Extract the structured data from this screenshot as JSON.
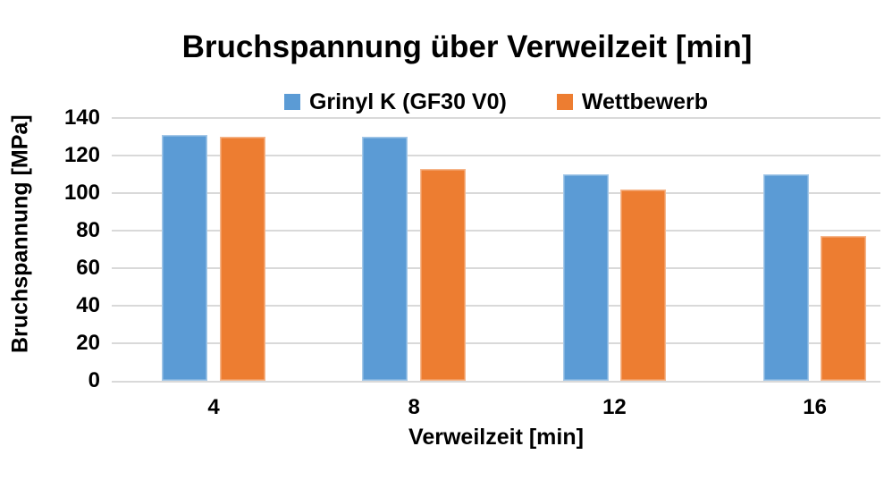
{
  "chart_data": {
    "type": "bar",
    "title": "Bruchspannung über Verweilzeit [min]",
    "xlabel": "Verweilzeit [min]",
    "ylabel": "Bruchspannung [MPa]",
    "categories": [
      "4",
      "8",
      "12",
      "16"
    ],
    "series": [
      {
        "name": "Grinyl K (GF30 V0)",
        "color": "#5B9BD5",
        "values": [
          131,
          130,
          110,
          110
        ]
      },
      {
        "name": "Wettbewerb",
        "color": "#ED7D31",
        "values": [
          130,
          113,
          102,
          77
        ]
      }
    ],
    "ylim": [
      0,
      140
    ],
    "yticks": [
      0,
      20,
      40,
      60,
      80,
      100,
      120,
      140
    ],
    "grid": "horizontal",
    "gridline_color": "#D9D9D9",
    "legend_position": "top",
    "background": "#FFFFFF",
    "text_color": "#000000"
  }
}
